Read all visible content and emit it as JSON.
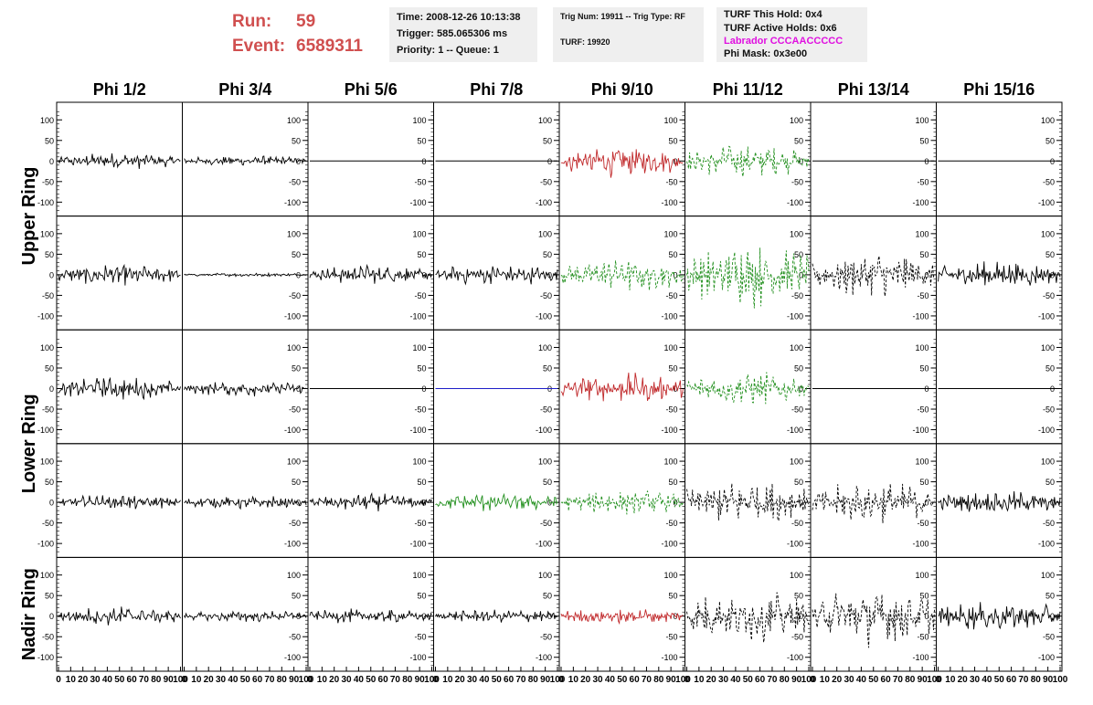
{
  "header": {
    "run_label": "Run:",
    "run_value": "59",
    "event_label": "Event:",
    "event_value": "6589311"
  },
  "info": {
    "time": "Time: 2008-12-26 10:13:38",
    "trigger": "Trigger: 585.065306 ms",
    "priority": "Priority: 1 -- Queue: 1",
    "trig_num": "Trig Num: 19911 -- Trig Type: RF",
    "turf": "TURF: 19920",
    "turf_this_hold": "TURF This Hold: 0x4",
    "turf_active_holds": "TURF Active Holds: 0x6",
    "labrador": "Labrador CCCAACCCCC",
    "phi_mask": "Phi Mask: 0x3e00"
  },
  "colors": {
    "run_text": "#d04f4f",
    "labrador_text": "#e010e0",
    "trace_black": "#000000",
    "trace_red": "#c0282a",
    "trace_green": "#23901f",
    "trace_blue": "#1f1fc8",
    "info_box_bg": "#efefef"
  },
  "chart_data": {
    "type": "line",
    "columns": [
      "Phi 1/2",
      "Phi 3/4",
      "Phi 5/6",
      "Phi 7/8",
      "Phi 9/10",
      "Phi 11/12",
      "Phi 13/14",
      "Phi 15/16"
    ],
    "ring_groups": [
      "Upper Ring",
      "Lower Ring",
      "Nadir Ring"
    ],
    "rows": 5,
    "xlim": [
      0,
      100
    ],
    "ylim": [
      -125,
      125
    ],
    "x_ticks": [
      0,
      10,
      20,
      30,
      40,
      50,
      60,
      70,
      80,
      90,
      100
    ],
    "x_tick_labels": [
      "0",
      "10",
      "20",
      "30",
      "40",
      "50",
      "60",
      "70",
      "80",
      "90",
      "100"
    ],
    "y_ticks": [
      100,
      50,
      0,
      -50,
      -100
    ],
    "y_tick_labels": [
      "100",
      "50",
      "0",
      "-50",
      "-100"
    ],
    "waveforms": [
      [
        {
          "a": 22,
          "c": "black",
          "d": false
        },
        {
          "a": 14,
          "c": "black",
          "d": false
        },
        {
          "a": 0,
          "c": "black",
          "d": false
        },
        {
          "a": 0,
          "c": "black",
          "d": false
        },
        {
          "a": 42,
          "c": "red",
          "d": false
        },
        {
          "a": 45,
          "c": "green",
          "d": true
        },
        {
          "a": 0,
          "c": "black",
          "d": false
        },
        {
          "a": 0,
          "c": "black",
          "d": false
        }
      ],
      [
        {
          "a": 28,
          "c": "black",
          "d": false
        },
        {
          "a": 5,
          "c": "black",
          "d": false
        },
        {
          "a": 25,
          "c": "black",
          "d": false
        },
        {
          "a": 28,
          "c": "black",
          "d": false
        },
        {
          "a": 45,
          "c": "green",
          "d": true
        },
        {
          "a": 85,
          "c": "green",
          "d": true
        },
        {
          "a": 60,
          "c": "black",
          "d": true
        },
        {
          "a": 35,
          "c": "black",
          "d": false
        }
      ],
      [
        {
          "a": 30,
          "c": "black",
          "d": false
        },
        {
          "a": 20,
          "c": "black",
          "d": false
        },
        {
          "a": 0,
          "c": "black",
          "d": false
        },
        {
          "a": 0,
          "c": "blue",
          "d": false
        },
        {
          "a": 40,
          "c": "red",
          "d": false
        },
        {
          "a": 45,
          "c": "green",
          "d": true
        },
        {
          "a": 0,
          "c": "black",
          "d": false
        },
        {
          "a": 0,
          "c": "black",
          "d": false
        }
      ],
      [
        {
          "a": 20,
          "c": "black",
          "d": false
        },
        {
          "a": 18,
          "c": "black",
          "d": false
        },
        {
          "a": 22,
          "c": "black",
          "d": false
        },
        {
          "a": 25,
          "c": "green",
          "d": false
        },
        {
          "a": 35,
          "c": "green",
          "d": true
        },
        {
          "a": 60,
          "c": "black",
          "d": true
        },
        {
          "a": 55,
          "c": "black",
          "d": true
        },
        {
          "a": 30,
          "c": "black",
          "d": false
        }
      ],
      [
        {
          "a": 25,
          "c": "black",
          "d": false
        },
        {
          "a": 15,
          "c": "black",
          "d": false
        },
        {
          "a": 20,
          "c": "black",
          "d": false
        },
        {
          "a": 18,
          "c": "black",
          "d": false
        },
        {
          "a": 22,
          "c": "red",
          "d": false
        },
        {
          "a": 70,
          "c": "black",
          "d": true
        },
        {
          "a": 80,
          "c": "black",
          "d": true
        },
        {
          "a": 40,
          "c": "black",
          "d": false
        }
      ]
    ]
  }
}
